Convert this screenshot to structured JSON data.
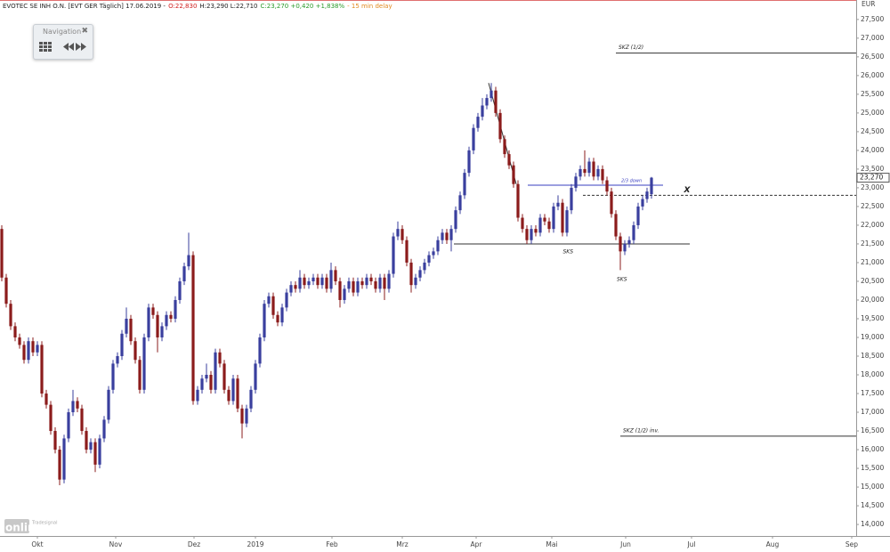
{
  "navigation": {
    "title": "Navigation"
  },
  "watermark": {
    "brand": "Tradesignal",
    "logo": "online"
  },
  "chart_data": {
    "type": "candlestick",
    "header": [
      {
        "text": "EVOTEC SE INH O.N. [EVT GER Täglich] 17.06.2019 -",
        "color": "#222222"
      },
      {
        "text": "O:22,830",
        "color": "#d02020"
      },
      {
        "text": "H:23,290 L:22,710",
        "color": "#222222"
      },
      {
        "text": "C:23,270 +0,420 +1,838%",
        "color": "#2a9a2a"
      },
      {
        "text": "- 15 min delay",
        "color": "#e08a20"
      }
    ],
    "y_unit": "EUR",
    "up_color": "#3a3f9e",
    "down_color": "#8b1c1c",
    "open": [
      21.9,
      20.6,
      19.9,
      19.3,
      19.0,
      18.8,
      18.4,
      18.9,
      18.6,
      18.8,
      17.5,
      17.2,
      16.5,
      16.0,
      15.2,
      16.3,
      17.0,
      17.3,
      17.1,
      16.5,
      16.0,
      16.2,
      15.6,
      16.3,
      16.8,
      17.6,
      18.3,
      18.5,
      19.1,
      19.5,
      18.9,
      18.4,
      17.6,
      19.0,
      19.8,
      19.6,
      19.0,
      19.3,
      19.6,
      19.5,
      20.0,
      20.5,
      20.9,
      21.2,
      17.3,
      17.6,
      17.9,
      18.0,
      17.6,
      18.6,
      18.3,
      17.6,
      17.3,
      17.9,
      17.1,
      16.7,
      17.1,
      17.6,
      18.3,
      19.0,
      19.9,
      20.1,
      19.6,
      19.4,
      19.8,
      20.2,
      20.4,
      20.3,
      20.6,
      20.4,
      20.5,
      20.6,
      20.4,
      20.6,
      20.3,
      20.8,
      20.5,
      20.0,
      20.3,
      20.5,
      20.2,
      20.5,
      20.4,
      20.6,
      20.5,
      20.3,
      20.6,
      20.3,
      20.7,
      21.7,
      21.9,
      21.6,
      21.0,
      20.4,
      20.6,
      20.8,
      21.0,
      21.2,
      21.3,
      21.6,
      21.8,
      21.6,
      21.9,
      22.4,
      22.8,
      23.4,
      24.0,
      24.6,
      24.9,
      25.2,
      25.4,
      25.6,
      25.0,
      24.3,
      23.9,
      23.6,
      23.1,
      22.2,
      21.9,
      21.6,
      21.9,
      21.8,
      22.2,
      22.1,
      21.9,
      22.5,
      22.6,
      21.8,
      22.4,
      23.0,
      23.3,
      23.5,
      23.4,
      23.7,
      23.3,
      23.5,
      23.2,
      22.9,
      22.3,
      21.7,
      21.3,
      21.5,
      21.6,
      22.0,
      22.5,
      22.7,
      22.83
    ],
    "high": [
      22.0,
      20.7,
      20.0,
      19.4,
      19.1,
      18.9,
      19.0,
      19.0,
      18.9,
      18.9,
      17.6,
      17.3,
      16.6,
      16.1,
      16.4,
      17.1,
      17.6,
      17.4,
      17.2,
      16.6,
      16.3,
      16.3,
      16.4,
      16.9,
      17.7,
      18.4,
      18.6,
      19.2,
      19.8,
      19.6,
      19.0,
      18.5,
      19.1,
      19.9,
      19.9,
      19.7,
      19.4,
      19.7,
      19.7,
      20.1,
      20.6,
      21.0,
      21.8,
      21.3,
      17.7,
      18.0,
      18.3,
      18.1,
      18.7,
      18.7,
      18.4,
      17.7,
      18.0,
      18.0,
      17.2,
      17.2,
      17.7,
      18.4,
      19.1,
      20.0,
      20.2,
      20.2,
      19.7,
      19.9,
      20.3,
      20.5,
      20.5,
      20.8,
      20.7,
      20.6,
      20.7,
      20.7,
      20.7,
      20.7,
      21.0,
      20.9,
      20.6,
      20.4,
      20.6,
      20.6,
      20.6,
      20.6,
      20.7,
      20.7,
      20.6,
      20.7,
      20.7,
      20.8,
      21.8,
      22.1,
      22.0,
      21.7,
      21.1,
      20.7,
      20.9,
      21.1,
      21.3,
      21.4,
      21.7,
      21.9,
      21.9,
      22.0,
      22.5,
      22.9,
      23.5,
      24.1,
      24.7,
      25.0,
      25.4,
      25.5,
      25.8,
      25.7,
      25.1,
      24.4,
      24.0,
      23.7,
      23.2,
      22.3,
      22.0,
      22.0,
      22.0,
      22.3,
      22.3,
      22.2,
      22.6,
      22.8,
      22.7,
      22.5,
      23.1,
      23.4,
      23.6,
      24.0,
      23.8,
      23.8,
      23.6,
      23.6,
      23.3,
      23.0,
      22.4,
      21.8,
      21.6,
      21.7,
      22.1,
      22.6,
      22.8,
      23.0,
      23.29
    ],
    "low": [
      20.5,
      19.8,
      19.2,
      18.9,
      18.7,
      18.3,
      18.3,
      18.5,
      18.5,
      17.4,
      17.1,
      16.4,
      15.9,
      15.05,
      15.1,
      16.2,
      16.9,
      17.0,
      16.4,
      15.9,
      15.9,
      15.4,
      15.5,
      16.2,
      16.7,
      17.5,
      18.2,
      18.4,
      19.0,
      18.8,
      18.3,
      17.5,
      17.5,
      18.9,
      19.5,
      18.6,
      18.9,
      19.2,
      19.4,
      19.4,
      19.9,
      20.4,
      20.8,
      17.2,
      17.2,
      17.5,
      17.8,
      17.5,
      17.5,
      18.2,
      17.5,
      17.2,
      17.2,
      17.0,
      16.3,
      16.6,
      17.0,
      17.5,
      18.2,
      18.9,
      19.8,
      19.5,
      19.3,
      19.3,
      19.7,
      20.1,
      20.2,
      20.2,
      20.3,
      20.3,
      20.4,
      20.3,
      20.3,
      20.2,
      20.2,
      20.4,
      19.8,
      19.9,
      20.2,
      20.1,
      20.1,
      20.3,
      20.3,
      20.4,
      20.2,
      20.2,
      20.0,
      20.2,
      20.6,
      21.6,
      21.5,
      20.9,
      20.2,
      20.3,
      20.5,
      20.7,
      20.9,
      21.1,
      21.2,
      21.5,
      21.5,
      21.3,
      21.8,
      22.3,
      22.7,
      23.3,
      23.9,
      24.5,
      24.8,
      25.1,
      25.3,
      24.9,
      24.2,
      23.8,
      23.5,
      23.0,
      22.1,
      21.8,
      21.5,
      21.5,
      21.7,
      21.7,
      22.0,
      21.8,
      21.8,
      22.4,
      21.7,
      21.7,
      22.3,
      22.9,
      23.2,
      23.3,
      23.3,
      23.2,
      23.2,
      23.1,
      22.8,
      22.2,
      21.6,
      20.8,
      21.2,
      21.4,
      21.5,
      21.9,
      22.4,
      22.6,
      22.71
    ],
    "close": [
      20.6,
      19.9,
      19.3,
      19.0,
      18.8,
      18.4,
      18.9,
      18.6,
      18.8,
      17.5,
      17.2,
      16.5,
      16.0,
      15.2,
      16.3,
      17.0,
      17.3,
      17.1,
      16.5,
      16.0,
      16.2,
      15.6,
      16.3,
      16.8,
      17.6,
      18.3,
      18.5,
      19.1,
      19.5,
      18.9,
      18.4,
      17.6,
      19.0,
      19.8,
      19.6,
      19.0,
      19.3,
      19.6,
      19.5,
      20.0,
      20.5,
      20.9,
      21.2,
      17.3,
      17.6,
      17.9,
      18.0,
      17.6,
      18.6,
      18.3,
      17.6,
      17.3,
      17.9,
      17.1,
      16.7,
      17.1,
      17.6,
      18.3,
      19.0,
      19.9,
      20.1,
      19.6,
      19.4,
      19.8,
      20.2,
      20.4,
      20.3,
      20.6,
      20.4,
      20.5,
      20.6,
      20.4,
      20.6,
      20.3,
      20.8,
      20.5,
      20.0,
      20.3,
      20.5,
      20.2,
      20.5,
      20.4,
      20.6,
      20.5,
      20.3,
      20.6,
      20.3,
      20.7,
      21.7,
      21.9,
      21.6,
      21.0,
      20.4,
      20.6,
      20.8,
      21.0,
      21.2,
      21.3,
      21.6,
      21.8,
      21.6,
      21.9,
      22.4,
      22.8,
      23.4,
      24.0,
      24.6,
      24.9,
      25.2,
      25.4,
      25.6,
      25.0,
      24.3,
      23.9,
      23.6,
      23.1,
      22.2,
      21.9,
      21.6,
      21.9,
      21.8,
      22.2,
      22.1,
      21.9,
      22.5,
      22.6,
      21.8,
      22.4,
      23.0,
      23.3,
      23.5,
      23.4,
      23.7,
      23.3,
      23.5,
      23.2,
      22.9,
      22.3,
      21.7,
      21.3,
      21.5,
      21.6,
      22.0,
      22.5,
      22.7,
      22.9,
      23.27
    ],
    "last_price": {
      "value": 23.27,
      "label": "23,270"
    },
    "xlim": [
      -0.4,
      192
    ],
    "xticks": [
      {
        "value": 8,
        "label": "Okt"
      },
      {
        "value": 25.6,
        "label": "Nov"
      },
      {
        "value": 43.2,
        "label": "Dez"
      },
      {
        "value": 57,
        "label": "2019"
      },
      {
        "value": 74.2,
        "label": "Feb"
      },
      {
        "value": 90,
        "label": "Mrz"
      },
      {
        "value": 106.6,
        "label": "Apr"
      },
      {
        "value": 123.6,
        "label": "Mai"
      },
      {
        "value": 140.2,
        "label": "Jun"
      },
      {
        "value": 155,
        "label": "Jul"
      },
      {
        "value": 173.2,
        "label": "Aug"
      },
      {
        "value": 191,
        "label": "Sep"
      }
    ],
    "ylim": [
      13.74,
      28.02
    ],
    "yticks": [
      {
        "value": 14,
        "label": "14,000"
      },
      {
        "value": 14.5,
        "label": "14,500"
      },
      {
        "value": 15,
        "label": "15,000"
      },
      {
        "value": 15.5,
        "label": "15,500"
      },
      {
        "value": 16,
        "label": "16,000"
      },
      {
        "value": 16.5,
        "label": "16,500"
      },
      {
        "value": 17,
        "label": "17,000"
      },
      {
        "value": 17.5,
        "label": "17,500"
      },
      {
        "value": 18,
        "label": "18,000"
      },
      {
        "value": 18.5,
        "label": "18,500"
      },
      {
        "value": 19,
        "label": "19,000"
      },
      {
        "value": 19.5,
        "label": "19,500"
      },
      {
        "value": 20,
        "label": "20,000"
      },
      {
        "value": 20.5,
        "label": "20,500"
      },
      {
        "value": 21,
        "label": "21,000"
      },
      {
        "value": 21.5,
        "label": "21,500"
      },
      {
        "value": 22,
        "label": "22,000"
      },
      {
        "value": 22.5,
        "label": "22,500"
      },
      {
        "value": 23,
        "label": "23,000"
      },
      {
        "value": 23.5,
        "label": "23,500"
      },
      {
        "value": 24,
        "label": "24,000"
      },
      {
        "value": 24.5,
        "label": "24,500"
      },
      {
        "value": 25,
        "label": "25,000"
      },
      {
        "value": 25.5,
        "label": "25,500"
      },
      {
        "value": 26,
        "label": "26,000"
      },
      {
        "value": 26.5,
        "label": "26,500"
      },
      {
        "value": 27,
        "label": "27,000"
      },
      {
        "value": 27.5,
        "label": "27,500"
      }
    ],
    "levels": [
      {
        "label": "SKZ (1/2)",
        "y": 26.6,
        "x": [
          138,
          192
        ],
        "color": "#333333",
        "dashed": false
      },
      {
        "label": "SKZ (1/2) inv.",
        "y": 16.36,
        "x": [
          139,
          192
        ],
        "color": "#333333",
        "dashed": false
      },
      {
        "label": "SKS",
        "y": 21.5,
        "x": [
          101.6,
          154.6
        ],
        "color": "#333333",
        "dashed": false
      },
      {
        "label": "2/3 down",
        "y": 23.07,
        "x": [
          118.2,
          148.6
        ],
        "color": "#3a3fc0",
        "dashed": false
      },
      {
        "label": "X",
        "y": 22.8,
        "x": [
          130.6,
          192
        ],
        "color": "#333333",
        "dashed": true
      }
    ],
    "annotations": [
      {
        "text": "SKS",
        "x": 139,
        "y": 20.55
      }
    ],
    "trendline": {
      "x": [
        109.4,
        115.6
      ],
      "y": [
        25.8,
        23.1
      ],
      "color": "#333333"
    }
  }
}
